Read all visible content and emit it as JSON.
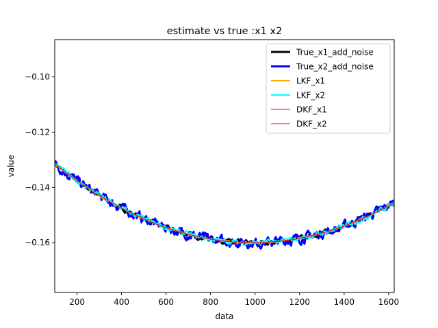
{
  "chart_data": {
    "type": "line",
    "title": "estimate vs true :x1 x2",
    "xlabel": "data",
    "ylabel": "value",
    "xlim": [
      100,
      1625
    ],
    "ylim": [
      -0.178,
      -0.0865
    ],
    "xticks": [
      200,
      400,
      600,
      800,
      1000,
      1200,
      1400,
      1600
    ],
    "xtick_labels": [
      "200",
      "400",
      "600",
      "800",
      "1000",
      "1200",
      "1400",
      "1600"
    ],
    "yticks": [
      -0.16,
      -0.14,
      -0.12,
      -0.1
    ],
    "ytick_labels": [
      "−0.16",
      "−0.14",
      "−0.12",
      "−0.10"
    ],
    "grid": false,
    "legend_position": "upper-right",
    "curve_model": {
      "x_vertex": 990,
      "y_vertex": -0.16,
      "curvature": 3.6e-08
    },
    "series": [
      {
        "name": "True_x1_add_noise",
        "color": "#000000",
        "noise": 0.0006,
        "width": 3
      },
      {
        "name": "True_x2_add_noise",
        "color": "#0000ff",
        "noise": 0.0013,
        "width": 3
      },
      {
        "name": "LKF_x1",
        "color": "#ffa500",
        "noise": 0.0002,
        "width": 2
      },
      {
        "name": "LKF_x2",
        "color": "#00ffff",
        "noise": 0.0007,
        "width": 2
      },
      {
        "name": "DKF_x1",
        "color": "#bf00bf",
        "noise": 0.0,
        "width": 1
      },
      {
        "name": "DKF_x2",
        "color": "#ff0000",
        "noise": 0.0,
        "width": 1
      }
    ],
    "curve_samples": [
      {
        "x": 100,
        "y": -0.1315
      },
      {
        "x": 400,
        "y": -0.1475
      },
      {
        "x": 800,
        "y": -0.1587
      },
      {
        "x": 1000,
        "y": -0.16
      },
      {
        "x": 1200,
        "y": -0.1584
      },
      {
        "x": 1625,
        "y": -0.1455
      }
    ]
  }
}
